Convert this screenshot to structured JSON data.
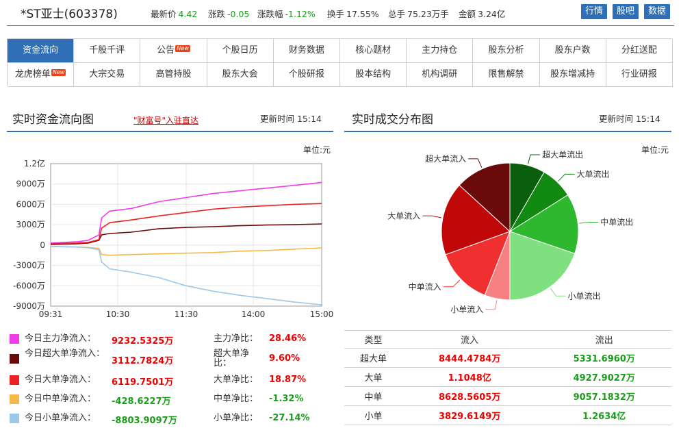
{
  "header": {
    "title": "*ST亚士(603378)",
    "quotes": [
      {
        "label": "最新价",
        "value": "4.42",
        "color": "green"
      },
      {
        "label": "涨跌",
        "value": "-0.05",
        "color": "green"
      },
      {
        "label": "涨跌幅",
        "value": "-1.12%",
        "color": "green"
      },
      {
        "label": "换手",
        "value": "17.55%",
        "color": "dark"
      },
      {
        "label": "总手",
        "value": "75.23万手",
        "color": "dark"
      },
      {
        "label": "金额",
        "value": "3.24亿",
        "color": "dark"
      }
    ],
    "buttons": [
      "行情",
      "股吧",
      "数据"
    ]
  },
  "nav": {
    "row1": [
      "资金流向",
      "千股千评",
      "公告",
      "个股日历",
      "财务数据",
      "核心题材",
      "主力持仓",
      "股东分析",
      "股东户数",
      "分红送配"
    ],
    "row2": [
      "龙虎榜单",
      "大宗交易",
      "高管持股",
      "股东大会",
      "个股研报",
      "股本结构",
      "机构调研",
      "限售解禁",
      "股东增减持",
      "行业研报"
    ],
    "new_badge": "New",
    "active": "资金流向"
  },
  "left": {
    "title": "实时资金流向图",
    "link": "\"财富号\"入驻直达",
    "update": "更新时间 15:14",
    "unit": "单位:元",
    "legend": [
      {
        "label": "今日主力净流入：",
        "value": "9232.5325万",
        "vcolor": "#e00",
        "rlabel": "主力净比：",
        "rvalue": "28.46%",
        "rcolor": "#e00",
        "swatch": "#f03ce8"
      },
      {
        "label": "今日超大单净流入：",
        "value": "3112.7824万",
        "vcolor": "#e00",
        "rlabel": "超大单净比：",
        "rvalue": "9.60%",
        "rcolor": "#e00",
        "swatch": "#6b0a0a"
      },
      {
        "label": "今日大单净流入：",
        "value": "6119.7501万",
        "vcolor": "#e00",
        "rlabel": "大单净比：",
        "rvalue": "18.87%",
        "rcolor": "#e00",
        "swatch": "#f02020"
      },
      {
        "label": "今日中单净流入：",
        "value": "-428.6227万",
        "vcolor": "#1a9e1a",
        "rlabel": "中单净比：",
        "rvalue": "-1.32%",
        "rcolor": "#1a9e1a",
        "swatch": "#f7b84a"
      },
      {
        "label": "今日小单净流入：",
        "value": "-8803.9097万",
        "vcolor": "#1a9e1a",
        "rlabel": "小单净比：",
        "rvalue": "-27.14%",
        "rcolor": "#1a9e1a",
        "swatch": "#9cc8ea"
      }
    ]
  },
  "right": {
    "title": "实时成交分布图",
    "update": "更新时间 15:14",
    "unit": "单位:元",
    "table": {
      "headers": [
        "类型",
        "流入",
        "流出"
      ],
      "rows": [
        {
          "type": "超大单",
          "in": "8444.4784万",
          "out": "5331.6960万"
        },
        {
          "type": "大单",
          "in": "1.1048亿",
          "out": "4927.9027万"
        },
        {
          "type": "中单",
          "in": "8628.5605万",
          "out": "9057.1832万"
        },
        {
          "type": "小单",
          "in": "3829.6149万",
          "out": "1.2634亿"
        }
      ]
    }
  },
  "chart_data": [
    {
      "type": "line",
      "x_ticks": [
        "09:31",
        "10:30",
        "11:30",
        "14:00",
        "15:00"
      ],
      "y_ticks": [
        "1.2亿",
        "9000万",
        "6000万",
        "3000万",
        "0",
        "-3000万",
        "-6000万",
        "-9000万"
      ],
      "ylim": [
        -9000,
        12000
      ],
      "y_unit": "万",
      "grid": true,
      "series": [
        {
          "name": "今日主力净流入",
          "color": "#f03ce8",
          "points": [
            [
              0,
              300
            ],
            [
              0.25,
              400
            ],
            [
              0.5,
              500
            ],
            [
              0.7,
              700
            ],
            [
              0.9,
              1500
            ],
            [
              0.95,
              4000
            ],
            [
              1.1,
              5000
            ],
            [
              1.5,
              5400
            ],
            [
              2,
              6400
            ],
            [
              2.5,
              7000
            ],
            [
              3,
              7600
            ],
            [
              3.5,
              8000
            ],
            [
              4,
              8400
            ],
            [
              4.5,
              8800
            ],
            [
              5,
              9232
            ]
          ]
        },
        {
          "name": "今日超大单净流入",
          "color": "#6b0a0a",
          "points": [
            [
              0,
              100
            ],
            [
              0.25,
              150
            ],
            [
              0.5,
              200
            ],
            [
              0.7,
              300
            ],
            [
              0.9,
              700
            ],
            [
              0.95,
              1500
            ],
            [
              1.1,
              1700
            ],
            [
              1.5,
              1900
            ],
            [
              2,
              2400
            ],
            [
              2.5,
              2600
            ],
            [
              3,
              2700
            ],
            [
              3.5,
              2850
            ],
            [
              4,
              2950
            ],
            [
              4.5,
              3000
            ],
            [
              5,
              3113
            ]
          ]
        },
        {
          "name": "今日大单净流入",
          "color": "#f02020",
          "points": [
            [
              0,
              200
            ],
            [
              0.25,
              250
            ],
            [
              0.5,
              300
            ],
            [
              0.7,
              400
            ],
            [
              0.9,
              800
            ],
            [
              0.95,
              2500
            ],
            [
              1.1,
              3300
            ],
            [
              1.5,
              3700
            ],
            [
              2,
              4300
            ],
            [
              2.5,
              4800
            ],
            [
              3,
              5300
            ],
            [
              3.5,
              5600
            ],
            [
              4,
              5800
            ],
            [
              4.5,
              6000
            ],
            [
              5,
              6120
            ]
          ]
        },
        {
          "name": "今日中单净流入",
          "color": "#f7b84a",
          "points": [
            [
              0,
              -200
            ],
            [
              0.25,
              -250
            ],
            [
              0.5,
              -300
            ],
            [
              0.7,
              -350
            ],
            [
              0.9,
              -500
            ],
            [
              0.95,
              -1400
            ],
            [
              1.1,
              -1500
            ],
            [
              1.5,
              -1400
            ],
            [
              2,
              -1300
            ],
            [
              2.5,
              -1200
            ],
            [
              3,
              -1100
            ],
            [
              3.5,
              -900
            ],
            [
              4,
              -800
            ],
            [
              4.5,
              -600
            ],
            [
              5,
              -429
            ]
          ]
        },
        {
          "name": "今日小单净流入",
          "color": "#9cc8ea",
          "points": [
            [
              0,
              -200
            ],
            [
              0.25,
              -250
            ],
            [
              0.5,
              -300
            ],
            [
              0.7,
              -400
            ],
            [
              0.9,
              -700
            ],
            [
              0.95,
              -2500
            ],
            [
              1.1,
              -3500
            ],
            [
              1.5,
              -4000
            ],
            [
              2,
              -4800
            ],
            [
              2.5,
              -6000
            ],
            [
              3,
              -6800
            ],
            [
              3.5,
              -7400
            ],
            [
              4,
              -7900
            ],
            [
              4.5,
              -8400
            ],
            [
              5,
              -8804
            ]
          ]
        }
      ]
    },
    {
      "type": "pie",
      "slices": [
        {
          "label": "超大单流出",
          "value": 5331.696,
          "color": "#0b5e0b"
        },
        {
          "label": "大单流出",
          "value": 4927.9027,
          "color": "#128a12"
        },
        {
          "label": "中单流出",
          "value": 9057.1832,
          "color": "#2db82d"
        },
        {
          "label": "小单流出",
          "value": 12634,
          "color": "#7ee07e"
        },
        {
          "label": "小单流入",
          "value": 3829.6149,
          "color": "#f78080"
        },
        {
          "label": "中单流入",
          "value": 8628.5605,
          "color": "#f03030"
        },
        {
          "label": "大单流入",
          "value": 11048,
          "color": "#c00808"
        },
        {
          "label": "超大单流入",
          "value": 8444.4784,
          "color": "#6b0a0a"
        }
      ]
    }
  ]
}
